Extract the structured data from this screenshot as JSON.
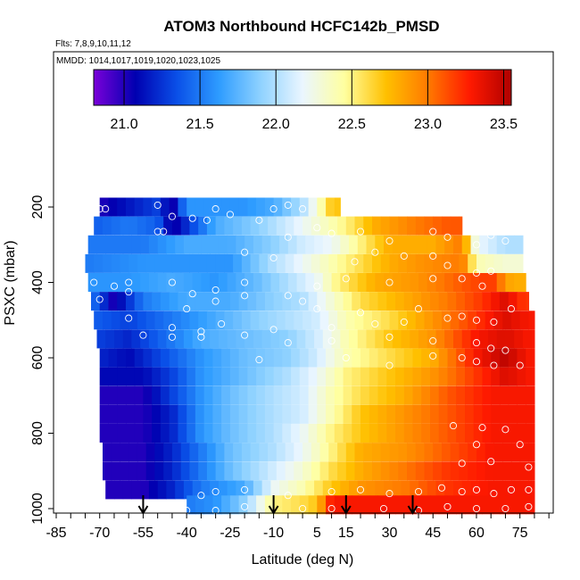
{
  "chart_data": {
    "type": "heatmap",
    "title": "ATOM3 Northbound HCFC142b_PMSD",
    "flights_label": "Flts: 7,8,9,10,11,12",
    "dates_label": "MMDD: 1014,1017,1019,1020,1023,1025",
    "xlabel": "Latitude (deg N)",
    "ylabel": "PSXC (mbar)",
    "xlim": [
      -85,
      85
    ],
    "ylim": [
      1000,
      100
    ],
    "x_ticks": [
      "-85",
      "-70",
      "-55",
      "-40",
      "-25",
      "-10",
      "5",
      "15",
      "30",
      "45",
      "60",
      "75"
    ],
    "y_ticks": [
      "200",
      "400",
      "600",
      "800",
      "1000"
    ],
    "colorbar": {
      "range": [
        20.8,
        23.55
      ],
      "tick_labels": [
        "21.0",
        "21.5",
        "22.0",
        "22.5",
        "23.0",
        "23.5"
      ],
      "stops": [
        "#7a00d9",
        "#0000b0",
        "#0a50e8",
        "#2e9cff",
        "#8fd2ff",
        "#eaf6ff",
        "#ffffa0",
        "#ffc000",
        "#ff7a00",
        "#ff1a00",
        "#b00000"
      ]
    },
    "rows": [
      {
        "p": 200,
        "lat_min": -70,
        "lat_max": 13,
        "lat": [
          -70,
          -60,
          -50,
          -45,
          -40,
          -30,
          -20,
          -10,
          0,
          5,
          10
        ],
        "val": [
          21.0,
          21.15,
          21.3,
          21.0,
          21.6,
          21.6,
          21.6,
          21.7,
          22.0,
          22.3,
          22.7
        ]
      },
      {
        "p": 250,
        "lat_min": -72,
        "lat_max": 55,
        "lat": [
          -72,
          -60,
          -50,
          -45,
          -30,
          -15,
          -5,
          5,
          15,
          25,
          40,
          50
        ],
        "val": [
          21.4,
          21.5,
          21.4,
          21.0,
          21.7,
          21.9,
          22.1,
          22.3,
          22.5,
          22.8,
          23.0,
          23.1
        ]
      },
      {
        "p": 300,
        "lat_min": -74,
        "lat_max": 76,
        "lat": [
          -74,
          -55,
          -40,
          -25,
          -10,
          0,
          10,
          20,
          30,
          45,
          55,
          60,
          70
        ],
        "val": [
          21.5,
          21.5,
          21.7,
          21.7,
          21.9,
          22.1,
          22.2,
          22.5,
          22.8,
          22.8,
          23.0,
          22.2,
          22.0
        ]
      },
      {
        "p": 350,
        "lat_min": -75,
        "lat_max": 76,
        "lat": [
          -75,
          -55,
          -40,
          -25,
          -10,
          0,
          10,
          20,
          30,
          40,
          55,
          60,
          70
        ],
        "val": [
          21.5,
          21.6,
          21.6,
          21.6,
          22.0,
          22.2,
          22.4,
          22.6,
          22.8,
          22.9,
          23.0,
          22.4,
          22.3
        ]
      },
      {
        "p": 400,
        "lat_min": -74,
        "lat_max": 77,
        "lat": [
          -74,
          -60,
          -45,
          -30,
          -15,
          -5,
          5,
          12,
          25,
          40,
          55,
          65,
          72
        ],
        "val": [
          21.6,
          21.6,
          21.7,
          21.6,
          21.8,
          22.0,
          22.2,
          22.5,
          22.8,
          22.9,
          23.1,
          23.2,
          22.8
        ]
      },
      {
        "p": 450,
        "lat_min": -73,
        "lat_max": 78,
        "lat": [
          -73,
          -65,
          -55,
          -40,
          -25,
          -10,
          0,
          10,
          20,
          35,
          50,
          62,
          70,
          76
        ],
        "val": [
          21.5,
          21.0,
          21.5,
          21.7,
          21.7,
          21.9,
          22.0,
          22.3,
          22.6,
          22.8,
          23.0,
          23.2,
          23.4,
          23.2
        ]
      },
      {
        "p": 500,
        "lat_min": -72,
        "lat_max": 80,
        "lat": [
          -72,
          -60,
          -45,
          -30,
          -15,
          -5,
          5,
          15,
          30,
          45,
          60,
          70,
          78
        ],
        "val": [
          21.4,
          21.3,
          21.5,
          21.7,
          21.9,
          22.0,
          22.1,
          22.4,
          22.6,
          22.9,
          23.2,
          23.4,
          23.3
        ]
      },
      {
        "p": 550,
        "lat_min": -71,
        "lat_max": 80,
        "lat": [
          -71,
          -60,
          -45,
          -35,
          -20,
          -5,
          5,
          15,
          30,
          45,
          60,
          70,
          78
        ],
        "val": [
          21.3,
          21.2,
          21.5,
          21.7,
          21.8,
          21.9,
          22.1,
          22.4,
          22.7,
          22.9,
          23.3,
          23.4,
          23.3
        ]
      },
      {
        "p": 600,
        "lat_min": -70,
        "lat_max": 80,
        "lat": [
          -70,
          -60,
          -45,
          -35,
          -20,
          -5,
          5,
          15,
          30,
          45,
          60,
          70,
          78
        ],
        "val": [
          21.2,
          21.1,
          21.4,
          21.6,
          21.8,
          21.9,
          22.1,
          22.4,
          22.6,
          22.8,
          23.3,
          23.5,
          23.3
        ]
      },
      {
        "p": 650,
        "lat_min": -70,
        "lat_max": 80,
        "lat": [
          -70,
          -55,
          -45,
          -35,
          -20,
          -5,
          5,
          15,
          30,
          45,
          60,
          70,
          78
        ],
        "val": [
          21.1,
          21.1,
          21.3,
          21.6,
          21.8,
          22.0,
          22.2,
          22.5,
          22.7,
          22.9,
          23.2,
          23.4,
          23.3
        ]
      },
      {
        "p": 700,
        "lat_min": -70,
        "lat_max": 80,
        "lat": [
          -70,
          -55,
          -45,
          -35,
          -25,
          -10,
          0,
          10,
          20,
          35,
          50,
          65,
          78
        ],
        "val": [
          21.0,
          21.0,
          21.3,
          21.6,
          21.8,
          22.0,
          22.1,
          22.4,
          22.6,
          22.8,
          23.1,
          23.3,
          23.3
        ]
      },
      {
        "p": 750,
        "lat_min": -70,
        "lat_max": 80,
        "lat": [
          -70,
          -55,
          -45,
          -35,
          -25,
          -10,
          0,
          10,
          20,
          35,
          50,
          65,
          78
        ],
        "val": [
          21.0,
          21.0,
          21.2,
          21.6,
          21.8,
          22.0,
          22.1,
          22.4,
          22.7,
          22.9,
          23.1,
          23.3,
          23.3
        ]
      },
      {
        "p": 800,
        "lat_min": -70,
        "lat_max": 80,
        "lat": [
          -70,
          -55,
          -45,
          -35,
          -25,
          -10,
          0,
          10,
          20,
          35,
          50,
          65,
          78
        ],
        "val": [
          21.0,
          21.0,
          21.2,
          21.6,
          21.8,
          22.0,
          22.2,
          22.5,
          22.7,
          22.9,
          23.1,
          23.3,
          23.3
        ]
      },
      {
        "p": 850,
        "lat_min": -69,
        "lat_max": 80,
        "lat": [
          -69,
          -55,
          -45,
          -35,
          -25,
          -10,
          0,
          10,
          20,
          35,
          50,
          65,
          78
        ],
        "val": [
          21.0,
          21.0,
          21.2,
          21.5,
          21.8,
          22.0,
          22.2,
          22.5,
          22.8,
          22.9,
          23.1,
          23.3,
          23.3
        ]
      },
      {
        "p": 900,
        "lat_min": -69,
        "lat_max": 80,
        "lat": [
          -69,
          -55,
          -45,
          -35,
          -25,
          -10,
          0,
          10,
          20,
          35,
          50,
          65,
          78
        ],
        "val": [
          21.0,
          21.0,
          21.2,
          21.5,
          21.8,
          22.1,
          22.3,
          22.6,
          22.8,
          23.0,
          23.2,
          23.3,
          23.3
        ]
      },
      {
        "p": 950,
        "lat_min": -68,
        "lat_max": 80,
        "lat": [
          -68,
          -55,
          -45,
          -35,
          -20,
          -10,
          0,
          10,
          20,
          35,
          50,
          65,
          78
        ],
        "val": [
          21.0,
          21.0,
          21.2,
          21.5,
          21.7,
          22.2,
          22.4,
          22.7,
          22.9,
          23.0,
          23.2,
          23.3,
          23.3
        ]
      },
      {
        "p": 990,
        "lat_min": -40,
        "lat_max": 80,
        "lat": [
          -40,
          -30,
          -20,
          -10,
          0,
          5,
          10,
          20,
          35,
          50,
          65,
          78
        ],
        "val": [
          21.5,
          21.6,
          21.9,
          22.5,
          22.6,
          22.7,
          23.3,
          23.3,
          23.3,
          23.3,
          23.3,
          23.3
        ]
      }
    ],
    "markers_lat": [
      -55,
      -10,
      15,
      38
    ],
    "points": [
      [
        -75,
        200
      ],
      [
        -70,
        205
      ],
      [
        -68,
        205
      ],
      [
        -50,
        195
      ],
      [
        -30,
        205
      ],
      [
        -10,
        205
      ],
      [
        -5,
        195
      ],
      [
        0,
        205
      ],
      [
        15,
        200
      ],
      [
        25,
        200
      ],
      [
        -78,
        220
      ],
      [
        -50,
        265
      ],
      [
        -48,
        265
      ],
      [
        -33,
        235
      ],
      [
        -38,
        230
      ],
      [
        -45,
        225
      ],
      [
        -25,
        220
      ],
      [
        -15,
        235
      ],
      [
        -5,
        280
      ],
      [
        5,
        255
      ],
      [
        10,
        270
      ],
      [
        20,
        265
      ],
      [
        30,
        290
      ],
      [
        45,
        265
      ],
      [
        50,
        280
      ],
      [
        60,
        300
      ],
      [
        65,
        275
      ],
      [
        70,
        290
      ],
      [
        -80,
        330
      ],
      [
        -20,
        320
      ],
      [
        -10,
        335
      ],
      [
        18,
        345
      ],
      [
        25,
        320
      ],
      [
        35,
        330
      ],
      [
        45,
        330
      ],
      [
        50,
        355
      ],
      [
        60,
        375
      ],
      [
        65,
        370
      ],
      [
        -72,
        400
      ],
      [
        -65,
        410
      ],
      [
        -60,
        400
      ],
      [
        -45,
        400
      ],
      [
        -38,
        430
      ],
      [
        -30,
        420
      ],
      [
        -20,
        400
      ],
      [
        5,
        410
      ],
      [
        15,
        390
      ],
      [
        30,
        400
      ],
      [
        45,
        390
      ],
      [
        55,
        390
      ],
      [
        62,
        410
      ],
      [
        -75,
        430
      ],
      [
        -70,
        445
      ],
      [
        -60,
        425
      ],
      [
        -40,
        470
      ],
      [
        -30,
        450
      ],
      [
        -20,
        435
      ],
      [
        -5,
        435
      ],
      [
        0,
        450
      ],
      [
        5,
        470
      ],
      [
        20,
        480
      ],
      [
        40,
        470
      ],
      [
        55,
        490
      ],
      [
        72,
        470
      ],
      [
        -75,
        500
      ],
      [
        -60,
        495
      ],
      [
        -45,
        520
      ],
      [
        -35,
        530
      ],
      [
        -28,
        510
      ],
      [
        -10,
        525
      ],
      [
        10,
        520
      ],
      [
        25,
        510
      ],
      [
        35,
        505
      ],
      [
        50,
        495
      ],
      [
        60,
        500
      ],
      [
        66,
        505
      ],
      [
        -55,
        540
      ],
      [
        -45,
        545
      ],
      [
        -35,
        545
      ],
      [
        -20,
        540
      ],
      [
        -5,
        560
      ],
      [
        10,
        555
      ],
      [
        30,
        545
      ],
      [
        45,
        555
      ],
      [
        60,
        560
      ],
      [
        65,
        575
      ],
      [
        70,
        580
      ],
      [
        -15,
        605
      ],
      [
        15,
        600
      ],
      [
        30,
        620
      ],
      [
        45,
        595
      ],
      [
        55,
        600
      ],
      [
        60,
        610
      ],
      [
        66,
        620
      ],
      [
        75,
        620
      ],
      [
        52,
        780
      ],
      [
        62,
        785
      ],
      [
        70,
        790
      ],
      [
        60,
        830
      ],
      [
        75,
        830
      ],
      [
        55,
        880
      ],
      [
        65,
        875
      ],
      [
        78,
        890
      ],
      [
        -75,
        950
      ],
      [
        -70,
        955
      ],
      [
        -35,
        965
      ],
      [
        -30,
        955
      ],
      [
        -20,
        950
      ],
      [
        -5,
        965
      ],
      [
        10,
        955
      ],
      [
        20,
        950
      ],
      [
        30,
        960
      ],
      [
        40,
        955
      ],
      [
        48,
        945
      ],
      [
        55,
        955
      ],
      [
        60,
        950
      ],
      [
        66,
        960
      ],
      [
        72,
        950
      ],
      [
        78,
        950
      ],
      [
        -40,
        1005
      ],
      [
        -30,
        1005
      ],
      [
        -20,
        995
      ],
      [
        0,
        1000
      ],
      [
        10,
        1000
      ],
      [
        28,
        1000
      ],
      [
        40,
        1005
      ],
      [
        50,
        995
      ],
      [
        60,
        1000
      ],
      [
        70,
        1000
      ],
      [
        78,
        995
      ]
    ]
  }
}
